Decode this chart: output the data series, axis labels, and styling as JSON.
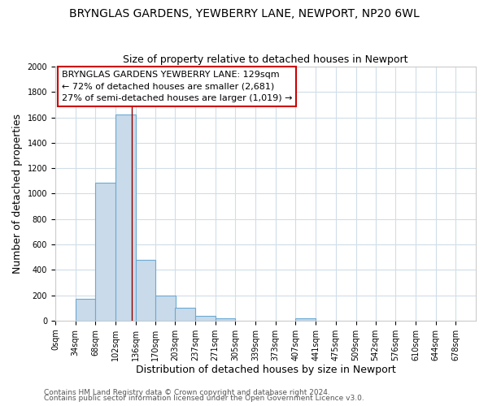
{
  "title": "BRYNGLAS GARDENS, YEWBERRY LANE, NEWPORT, NP20 6WL",
  "subtitle": "Size of property relative to detached houses in Newport",
  "xlabel": "Distribution of detached houses by size in Newport",
  "ylabel": "Number of detached properties",
  "bar_left_edges": [
    0,
    34,
    68,
    102,
    136,
    170,
    203,
    237,
    271,
    305,
    339,
    373,
    407,
    441,
    475,
    509,
    542,
    576,
    610,
    644
  ],
  "bar_heights": [
    0,
    170,
    1085,
    1625,
    480,
    200,
    100,
    40,
    20,
    0,
    0,
    0,
    20,
    0,
    0,
    0,
    0,
    0,
    0,
    0
  ],
  "bin_width": 34,
  "bar_color": "#c9daea",
  "bar_edge_color": "#6aaad4",
  "red_line_x": 129,
  "xlim_min": 0,
  "xlim_max": 712,
  "ylim_min": 0,
  "ylim_max": 2000,
  "yticks": [
    0,
    200,
    400,
    600,
    800,
    1000,
    1200,
    1400,
    1600,
    1800,
    2000
  ],
  "xtick_labels": [
    "0sqm",
    "34sqm",
    "68sqm",
    "102sqm",
    "136sqm",
    "170sqm",
    "203sqm",
    "237sqm",
    "271sqm",
    "305sqm",
    "339sqm",
    "373sqm",
    "407sqm",
    "441sqm",
    "475sqm",
    "509sqm",
    "542sqm",
    "576sqm",
    "610sqm",
    "644sqm",
    "678sqm"
  ],
  "xtick_positions": [
    0,
    34,
    68,
    102,
    136,
    170,
    203,
    237,
    271,
    305,
    339,
    373,
    407,
    441,
    475,
    509,
    542,
    576,
    610,
    644,
    678
  ],
  "annotation_lines": [
    "BRYNGLAS GARDENS YEWBERRY LANE: 129sqm",
    "← 72% of detached houses are smaller (2,681)",
    "27% of semi-detached houses are larger (1,019) →"
  ],
  "footer_line1": "Contains HM Land Registry data © Crown copyright and database right 2024.",
  "footer_line2": "Contains public sector information licensed under the Open Government Licence v3.0.",
  "background_color": "#ffffff",
  "plot_bg_color": "#ffffff",
  "grid_color": "#d0dde8",
  "title_fontsize": 10,
  "subtitle_fontsize": 9,
  "axis_label_fontsize": 9,
  "tick_fontsize": 7,
  "annotation_fontsize": 8,
  "footer_fontsize": 6.5
}
